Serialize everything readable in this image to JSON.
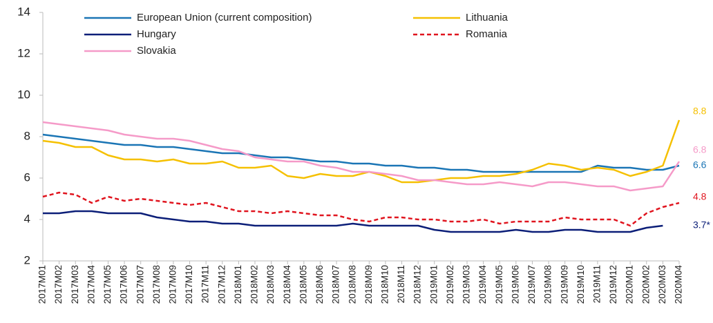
{
  "chart_data": {
    "type": "line",
    "categories": [
      "2017M01",
      "2017M02",
      "2017M03",
      "2017M04",
      "2017M05",
      "2017M06",
      "2017M07",
      "2017M08",
      "2017M09",
      "2017M10",
      "2017M11",
      "2017M12",
      "2018M01",
      "2018M02",
      "2018M03",
      "2018M04",
      "2018M05",
      "2018M06",
      "2018M07",
      "2018M08",
      "2018M09",
      "2018M10",
      "2018M11",
      "2018M12",
      "2019M01",
      "2019M02",
      "2019M03",
      "2019M04",
      "2019M05",
      "2019M06",
      "2019M07",
      "2019M08",
      "2019M09",
      "2019M10",
      "2019M11",
      "2019M12",
      "2020M01",
      "2020M02",
      "2020M03",
      "2020M04"
    ],
    "series": [
      {
        "name": "European Union (current composition)",
        "color": "#1a75b5",
        "dash": false,
        "values": [
          8.1,
          8.0,
          7.9,
          7.8,
          7.7,
          7.6,
          7.6,
          7.5,
          7.5,
          7.4,
          7.3,
          7.2,
          7.2,
          7.1,
          7.0,
          7.0,
          6.9,
          6.8,
          6.8,
          6.7,
          6.7,
          6.6,
          6.6,
          6.5,
          6.5,
          6.4,
          6.4,
          6.3,
          6.3,
          6.3,
          6.3,
          6.3,
          6.3,
          6.3,
          6.6,
          6.5,
          6.5,
          6.4,
          6.4,
          6.6
        ]
      },
      {
        "name": "Lithuania",
        "color": "#f5c000",
        "dash": false,
        "values": [
          7.8,
          7.7,
          7.5,
          7.5,
          7.1,
          6.9,
          6.9,
          6.8,
          6.9,
          6.7,
          6.7,
          6.8,
          6.5,
          6.5,
          6.6,
          6.1,
          6.0,
          6.2,
          6.1,
          6.1,
          6.3,
          6.1,
          5.8,
          5.8,
          5.9,
          6.0,
          6.0,
          6.1,
          6.1,
          6.2,
          6.4,
          6.7,
          6.6,
          6.4,
          6.5,
          6.4,
          6.1,
          6.3,
          6.6,
          8.8
        ]
      },
      {
        "name": "Hungary",
        "color": "#0b1e78",
        "dash": false,
        "values": [
          4.3,
          4.3,
          4.4,
          4.4,
          4.3,
          4.3,
          4.3,
          4.1,
          4.0,
          3.9,
          3.9,
          3.8,
          3.8,
          3.7,
          3.7,
          3.7,
          3.7,
          3.7,
          3.7,
          3.8,
          3.7,
          3.7,
          3.7,
          3.7,
          3.5,
          3.4,
          3.4,
          3.4,
          3.4,
          3.5,
          3.4,
          3.4,
          3.5,
          3.5,
          3.4,
          3.4,
          3.4,
          3.6,
          3.7,
          null
        ],
        "value_labels": [
          null,
          null,
          null,
          null,
          null,
          null,
          null,
          null,
          null,
          null,
          null,
          null,
          null,
          null,
          null,
          null,
          null,
          null,
          null,
          null,
          null,
          null,
          null,
          null,
          null,
          null,
          null,
          null,
          null,
          null,
          null,
          null,
          null,
          null,
          null,
          null,
          null,
          null,
          "3.7*",
          null
        ]
      },
      {
        "name": "Romania",
        "color": "#e0141e",
        "dash": true,
        "values": [
          5.1,
          5.3,
          5.2,
          4.8,
          5.1,
          4.9,
          5.0,
          4.9,
          4.8,
          4.7,
          4.8,
          4.6,
          4.4,
          4.4,
          4.3,
          4.4,
          4.3,
          4.2,
          4.2,
          4.0,
          3.9,
          4.1,
          4.1,
          4.0,
          4.0,
          3.9,
          3.9,
          4.0,
          3.8,
          3.9,
          3.9,
          3.9,
          4.1,
          4.0,
          4.0,
          4.0,
          3.7,
          4.3,
          4.6,
          4.8
        ]
      },
      {
        "name": "Slovakia",
        "color": "#f59ac8",
        "dash": false,
        "values": [
          8.7,
          8.6,
          8.5,
          8.4,
          8.3,
          8.1,
          8.0,
          7.9,
          7.9,
          7.8,
          7.6,
          7.4,
          7.3,
          7.0,
          6.9,
          6.8,
          6.8,
          6.6,
          6.5,
          6.3,
          6.3,
          6.2,
          6.1,
          5.9,
          5.9,
          5.8,
          5.7,
          5.7,
          5.8,
          5.7,
          5.6,
          5.8,
          5.8,
          5.7,
          5.6,
          5.6,
          5.4,
          5.5,
          5.6,
          6.8
        ]
      }
    ],
    "ylim": [
      2,
      14
    ],
    "yticks": [
      2,
      4,
      6,
      8,
      10,
      12,
      14
    ],
    "grid": false
  }
}
